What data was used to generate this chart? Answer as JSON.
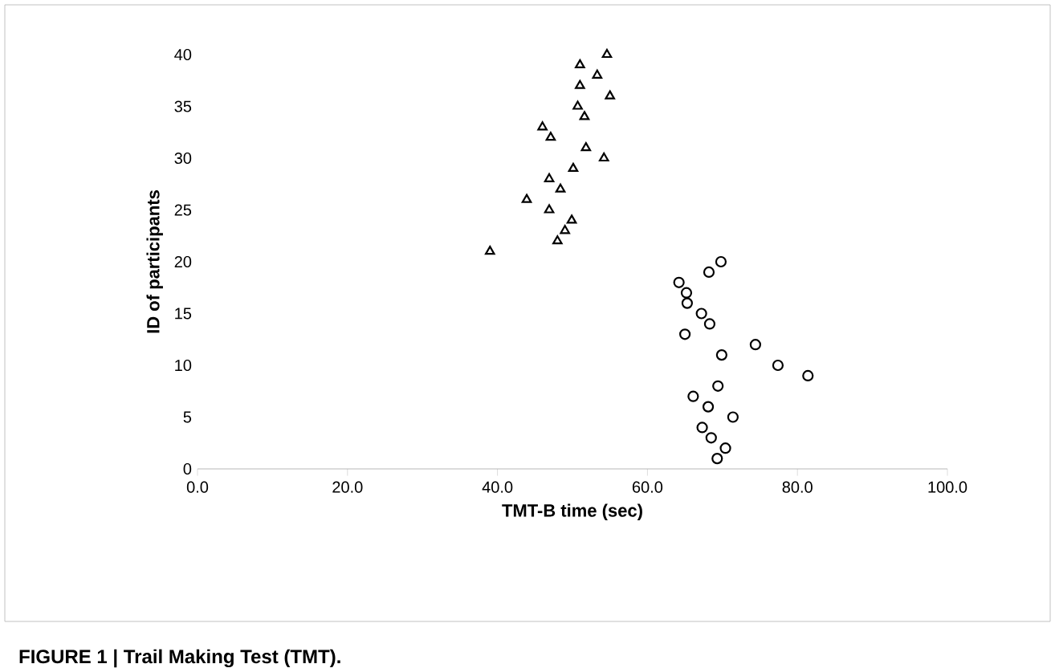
{
  "chart_data": {
    "type": "scatter",
    "xlabel": "TMT-B time (sec)",
    "ylabel": "ID of participants",
    "annotations": [
      "FIGURE 1 | Trail Making Test (TMT)."
    ],
    "xlim": [
      0,
      100
    ],
    "ylim": [
      0,
      40
    ],
    "xticks": [
      {
        "value": 0,
        "label": "0.0"
      },
      {
        "value": 20,
        "label": "20.0"
      },
      {
        "value": 40,
        "label": "40.0"
      },
      {
        "value": 60,
        "label": "60.0"
      },
      {
        "value": 80,
        "label": "80.0"
      },
      {
        "value": 100,
        "label": "100.0"
      }
    ],
    "yticks": [
      0,
      5,
      10,
      15,
      20,
      25,
      30,
      35,
      40
    ],
    "grid": false,
    "series": [
      {
        "color": "#000000",
        "marker": "triangle",
        "x": [
          39,
          48,
          49,
          49.9,
          46.9,
          43.9,
          48.4,
          46.9,
          50.1,
          54.2,
          51.8,
          47.1,
          46,
          51.6,
          50.7,
          55,
          51,
          53.3,
          51,
          54.6
        ],
        "values": [
          21,
          22,
          23,
          24,
          25,
          26,
          27,
          28,
          29,
          30,
          31,
          32,
          33,
          34,
          35,
          36,
          37,
          38,
          39,
          40
        ]
      },
      {
        "color": "#000000",
        "marker": "circle",
        "x": [
          69.3,
          70.4,
          68.5,
          67.3,
          71.4,
          68.1,
          66.1,
          69.4,
          81.4,
          77.4,
          69.9,
          74.4,
          65,
          68.3,
          67.2,
          65.3,
          65.2,
          64.2,
          68.2,
          69.8
        ],
        "values": [
          1,
          2,
          3,
          4,
          5,
          6,
          7,
          8,
          9,
          10,
          11,
          12,
          13,
          14,
          15,
          16,
          17,
          18,
          19,
          20
        ]
      }
    ]
  }
}
